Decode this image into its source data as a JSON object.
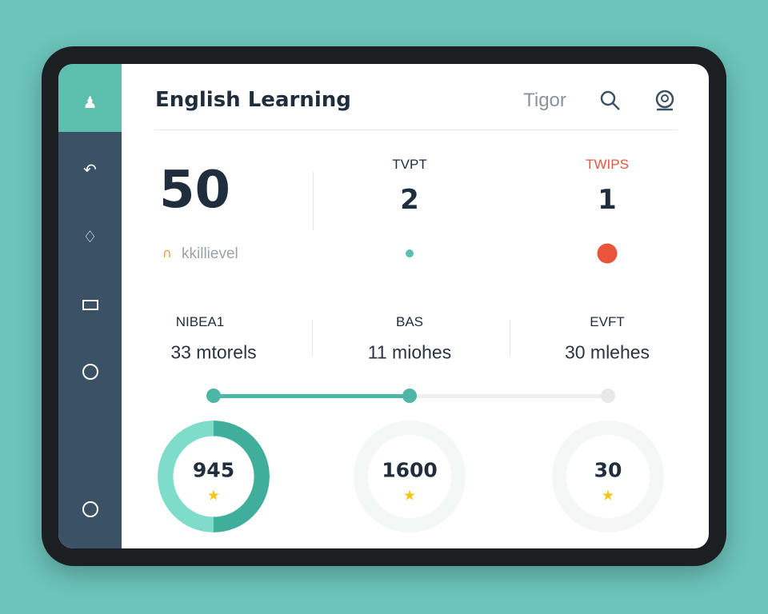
{
  "header": {
    "title": "English Learning",
    "user_name": "Tigor"
  },
  "sidebar": {
    "items": [
      {
        "icon": "people-icon"
      },
      {
        "icon": "return-icon"
      },
      {
        "icon": "tag-icon"
      },
      {
        "icon": "rectangle-icon"
      },
      {
        "icon": "circle-icon"
      },
      {
        "icon": "circle-icon"
      }
    ]
  },
  "stats": {
    "main_value": "50",
    "main_label": "kkillievel",
    "col2_label": "TVPT",
    "col2_value": "2",
    "col3_label": "TWIPS",
    "col3_value": "1"
  },
  "metrics": [
    {
      "label": "NIBEA1",
      "value": "33 mtorels"
    },
    {
      "label": "BAS",
      "value": "11 miohes"
    },
    {
      "label": "EVFT",
      "value": "30 mlehes"
    }
  ],
  "progress": {
    "steps": 3,
    "completed_steps": 2
  },
  "rings": [
    {
      "value": "945",
      "fill_percent": 100
    },
    {
      "value": "1600",
      "fill_percent": 0
    },
    {
      "value": "30",
      "fill_percent": 0
    }
  ],
  "colors": {
    "accent": "#4db6a4",
    "sidebar": "#3b5166",
    "alert": "#e8553b",
    "star": "#f5c518"
  }
}
